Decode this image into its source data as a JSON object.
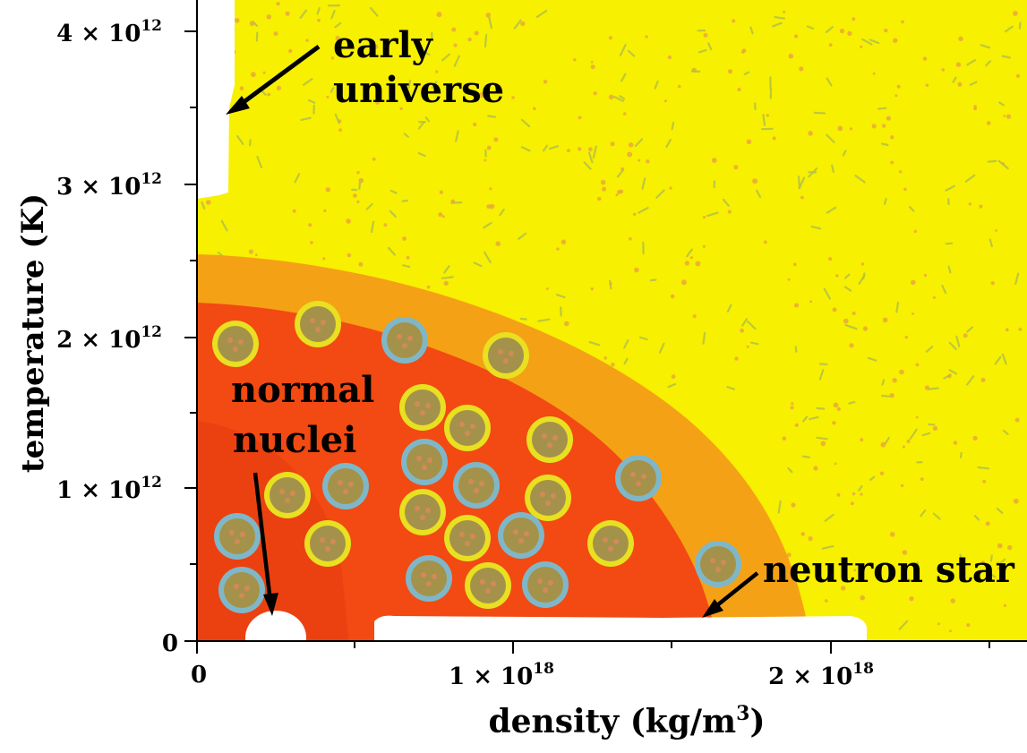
{
  "diagram": {
    "x_axis": {
      "label_main": "density (kg/m",
      "label_sup": "3",
      "label_end": ")",
      "ticks": [
        {
          "mant": "0",
          "exp": ""
        },
        {
          "mant": "1 × 10",
          "exp": "18"
        },
        {
          "mant": "2 × 10",
          "exp": "18"
        }
      ]
    },
    "y_axis": {
      "label": "temperature (K)",
      "ticks": [
        {
          "mant": "0",
          "exp": ""
        },
        {
          "mant": "1 × 10",
          "exp": "12"
        },
        {
          "mant": "2 × 10",
          "exp": "12"
        },
        {
          "mant": "3 × 10",
          "exp": "12"
        },
        {
          "mant": "4 × 10",
          "exp": "12"
        }
      ]
    },
    "annotations": {
      "early_universe_line1": "early",
      "early_universe_line2": "universe",
      "normal_nuclei_line1": "normal",
      "normal_nuclei_line2": "nuclei",
      "neutron_star": "neutron star"
    },
    "colors": {
      "quark_gluon_plasma": "#f7f000",
      "transition_outer": "#f5a116",
      "transition_inner": "#f24a12",
      "hadron_core": "#e63a10",
      "hadron_ring_yellow": "#e8e020",
      "hadron_ring_blue": "#7fb7c8",
      "hadron_fill": "#a4924a",
      "plasma_speckle_dot": "#e8a440",
      "plasma_speckle_dash": "#b4c048"
    }
  }
}
